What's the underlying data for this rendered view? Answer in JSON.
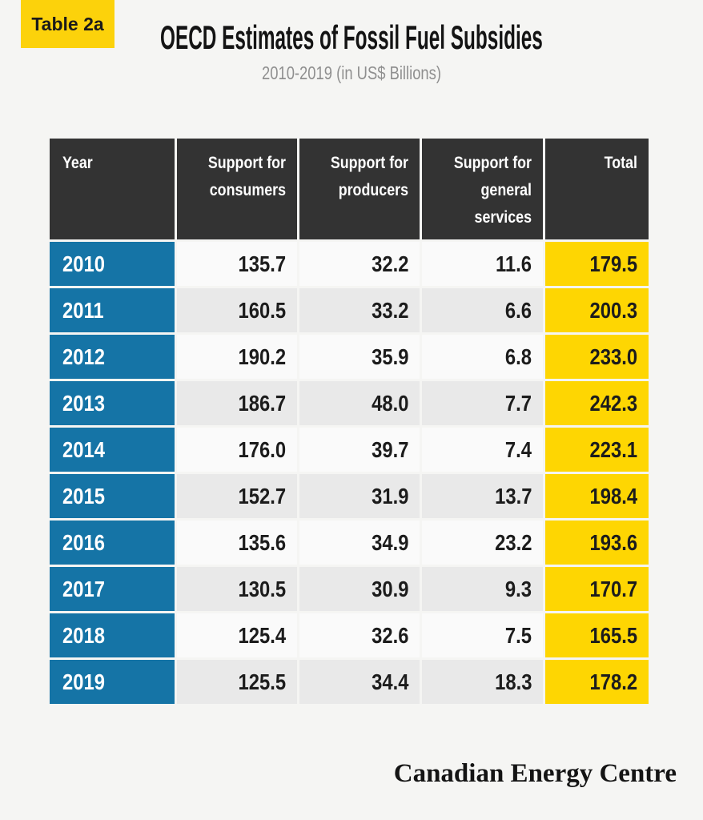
{
  "badge": {
    "label": "Table 2a"
  },
  "header": {
    "title": "OECD Estimates of Fossil Fuel Subsidies",
    "subtitle": "2010-2019 (in US$ Billions)"
  },
  "chart_data": {
    "type": "table",
    "title": "OECD Estimates of Fossil Fuel Subsidies",
    "subtitle": "2010-2019 (in US$ Billions)",
    "units": "US$ Billions",
    "columns": [
      "Year",
      "Support for consumers",
      "Support for producers",
      "Support for general services",
      "Total"
    ],
    "rows": [
      {
        "year": "2010",
        "consumers": "135.7",
        "producers": "32.2",
        "general_services": "11.6",
        "total": "179.5"
      },
      {
        "year": "2011",
        "consumers": "160.5",
        "producers": "33.2",
        "general_services": "6.6",
        "total": "200.3"
      },
      {
        "year": "2012",
        "consumers": "190.2",
        "producers": "35.9",
        "general_services": "6.8",
        "total": "233.0"
      },
      {
        "year": "2013",
        "consumers": "186.7",
        "producers": "48.0",
        "general_services": "7.7",
        "total": "242.3"
      },
      {
        "year": "2014",
        "consumers": "176.0",
        "producers": "39.7",
        "general_services": "7.4",
        "total": "223.1"
      },
      {
        "year": "2015",
        "consumers": "152.7",
        "producers": "31.9",
        "general_services": "13.7",
        "total": "198.4"
      },
      {
        "year": "2016",
        "consumers": "135.6",
        "producers": "34.9",
        "general_services": "23.2",
        "total": "193.6"
      },
      {
        "year": "2017",
        "consumers": "130.5",
        "producers": "30.9",
        "general_services": "9.3",
        "total": "170.7"
      },
      {
        "year": "2018",
        "consumers": "125.4",
        "producers": "32.6",
        "general_services": "7.5",
        "total": "165.5"
      },
      {
        "year": "2019",
        "consumers": "125.5",
        "producers": "34.4",
        "general_services": "18.3",
        "total": "178.2"
      }
    ]
  },
  "footer": {
    "brand": "Canadian Energy Centre"
  },
  "colors": {
    "background": "#f5f5f3",
    "badge_yellow": "#fcd20b",
    "header_dark": "#333333",
    "year_blue": "#1574a6",
    "total_yellow": "#fed602",
    "row_light": "#fafafa",
    "row_alt": "#e9e9e9",
    "subtitle_gray": "#8f8f8f"
  }
}
